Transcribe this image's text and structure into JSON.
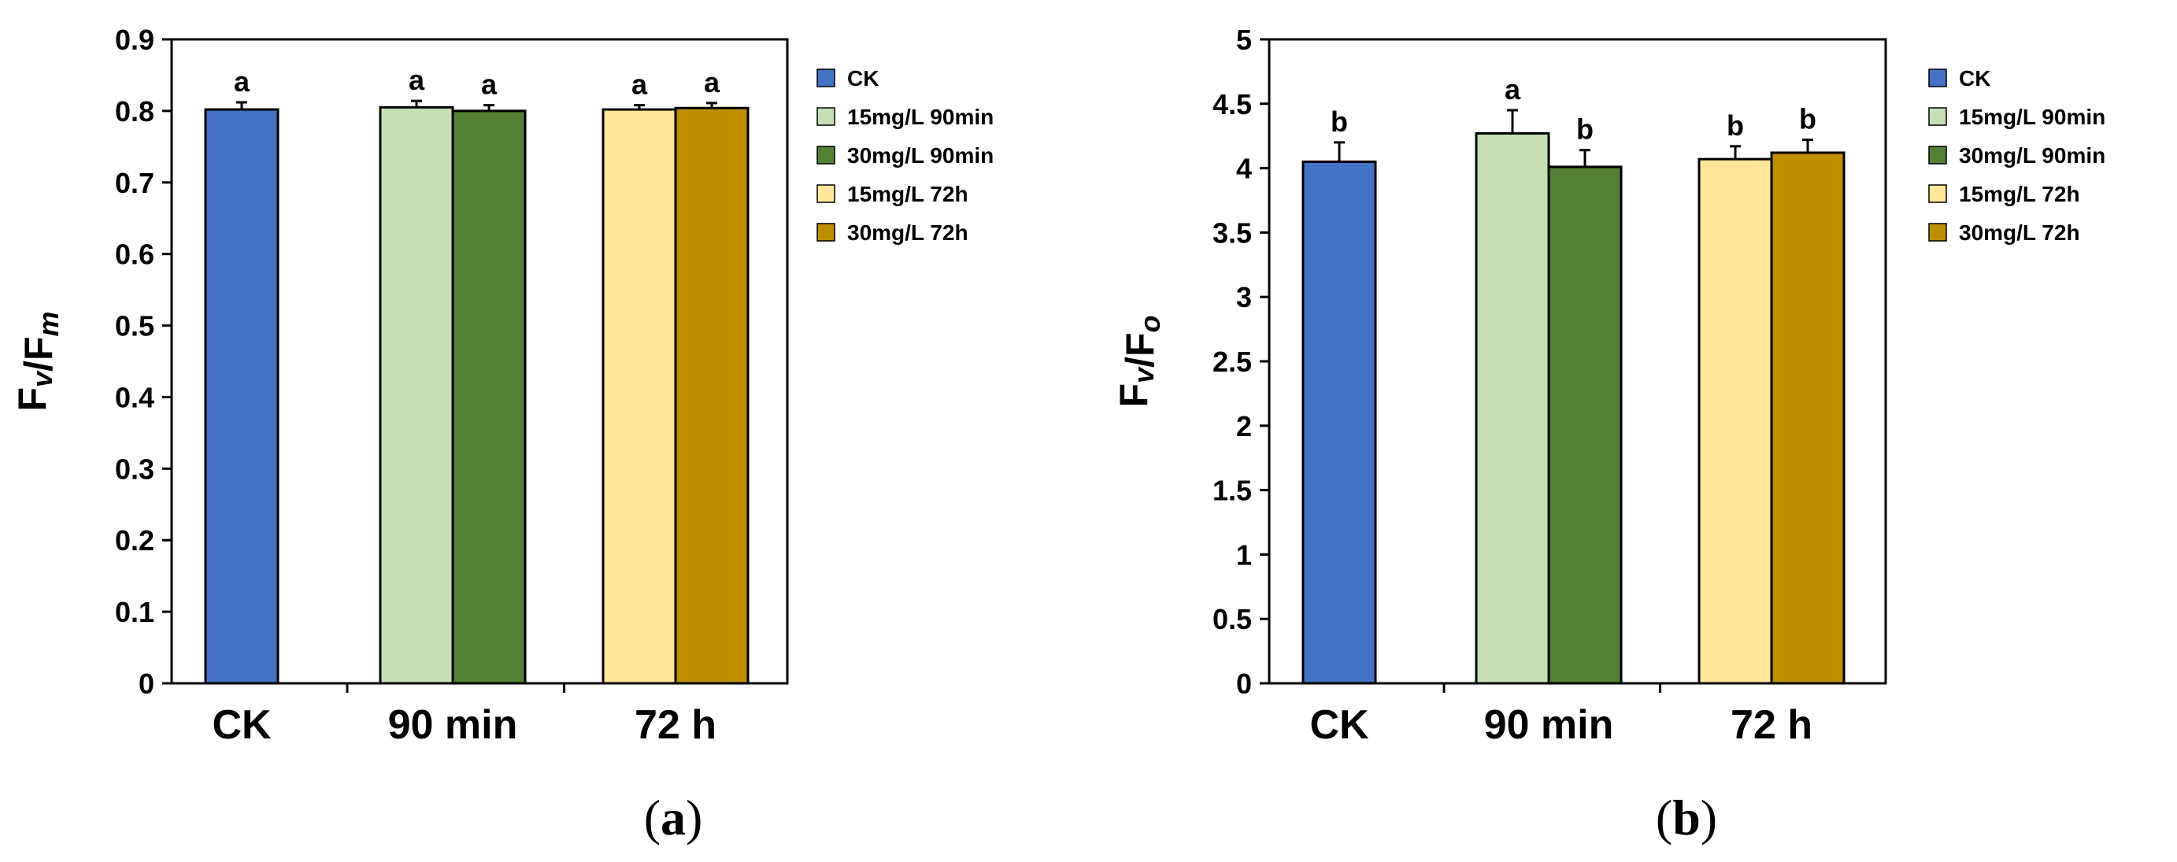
{
  "colors": {
    "CK": "#4472C4",
    "15mg/L 90min": "#C6E0B4",
    "30mg/L 90min": "#548235",
    "15mg/L 72h": "#FFE699",
    "30mg/L 72h": "#BF8F00"
  },
  "chart_data": [
    {
      "type": "bar",
      "panel_label": "(a)",
      "ylabel": {
        "main": "F",
        "sub1": "v",
        "sep": "/F",
        "sub2": "m"
      },
      "ylim": [
        0,
        0.9
      ],
      "yticks": [
        "0",
        "0.1",
        "0.2",
        "0.3",
        "0.4",
        "0.5",
        "0.6",
        "0.7",
        "0.8",
        "0.9"
      ],
      "categories": [
        "CK",
        "90 min",
        "72 h"
      ],
      "legend": [
        "CK",
        "15mg/L 90min",
        "30mg/L 90min",
        "15mg/L 72h",
        "30mg/L 72h"
      ],
      "bars": [
        {
          "series": "CK",
          "category": "CK",
          "value": 0.802,
          "error": 0.01,
          "letter": "a"
        },
        {
          "series": "15mg/L 90min",
          "category": "90 min",
          "value": 0.805,
          "error": 0.009,
          "letter": "a"
        },
        {
          "series": "30mg/L 90min",
          "category": "90 min",
          "value": 0.8,
          "error": 0.008,
          "letter": "a"
        },
        {
          "series": "15mg/L 72h",
          "category": "72 h",
          "value": 0.802,
          "error": 0.006,
          "letter": "a"
        },
        {
          "series": "30mg/L 72h",
          "category": "72 h",
          "value": 0.804,
          "error": 0.007,
          "letter": "a"
        }
      ]
    },
    {
      "type": "bar",
      "panel_label": "(b)",
      "ylabel": {
        "main": "F",
        "sub1": "v",
        "sep": "/F",
        "sub2": "o"
      },
      "ylim": [
        0,
        5
      ],
      "yticks": [
        "0",
        "0.5",
        "1",
        "1.5",
        "2",
        "2.5",
        "3",
        "3.5",
        "4",
        "4.5",
        "5"
      ],
      "categories": [
        "CK",
        "90 min",
        "72 h"
      ],
      "legend": [
        "CK",
        "15mg/L 90min",
        "30mg/L 90min",
        "15mg/L 72h",
        "30mg/L 72h"
      ],
      "bars": [
        {
          "series": "CK",
          "category": "CK",
          "value": 4.05,
          "error": 0.15,
          "letter": "b"
        },
        {
          "series": "15mg/L 90min",
          "category": "90 min",
          "value": 4.27,
          "error": 0.18,
          "letter": "a"
        },
        {
          "series": "30mg/L 90min",
          "category": "90 min",
          "value": 4.01,
          "error": 0.13,
          "letter": "b"
        },
        {
          "series": "15mg/L 72h",
          "category": "72 h",
          "value": 4.07,
          "error": 0.1,
          "letter": "b"
        },
        {
          "series": "30mg/L 72h",
          "category": "72 h",
          "value": 4.12,
          "error": 0.1,
          "letter": "b"
        }
      ]
    }
  ]
}
